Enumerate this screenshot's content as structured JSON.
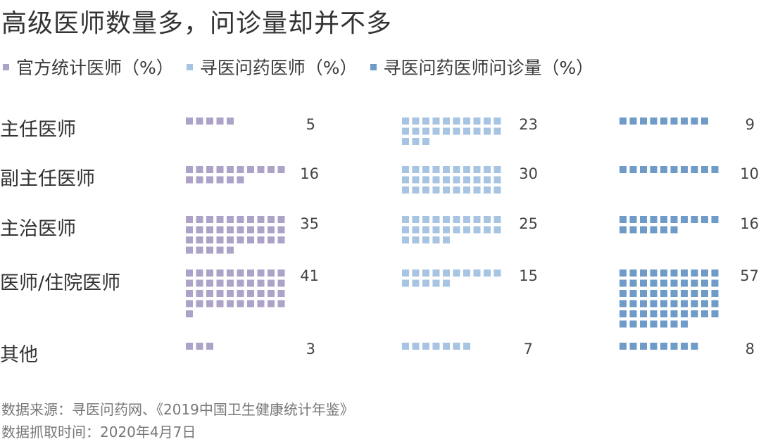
{
  "title": "高级医师数量多，问诊量却并不多",
  "footer": {
    "source": "数据来源：寻医问药网、《2019中国卫生健康统计年鉴》",
    "date": "数据抓取时间：2020年4月7日"
  },
  "chart_data": {
    "type": "waffle",
    "title": "高级医师数量多，问诊量却并不多",
    "categories": [
      "主任医师",
      "副主任医师",
      "主治医师",
      "医师/住院医师",
      "其他"
    ],
    "series": [
      {
        "name": "官方统计医师（%）",
        "color": "#ada3c9",
        "values": [
          5,
          16,
          35,
          41,
          3
        ]
      },
      {
        "name": "寻医问药医师（%）",
        "color": "#a7c4e2",
        "values": [
          23,
          30,
          25,
          15,
          7
        ]
      },
      {
        "name": "寻医问药医师问诊量（%）",
        "color": "#6f9bc8",
        "values": [
          9,
          10,
          16,
          57,
          8
        ]
      }
    ]
  }
}
